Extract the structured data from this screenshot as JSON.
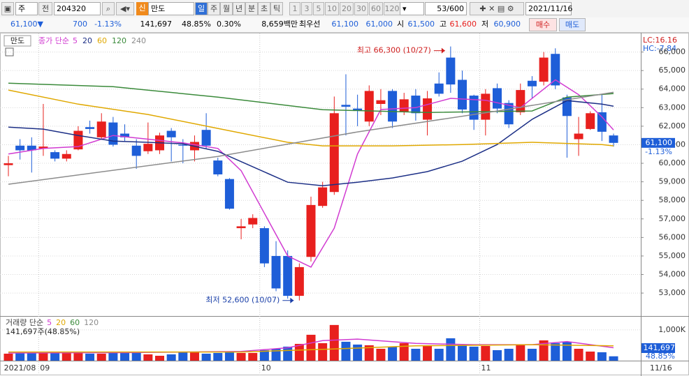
{
  "toolbar": {
    "type_select": "주",
    "mode": "전",
    "code": "204320",
    "tag": "신",
    "name": "만도",
    "periods": [
      "일",
      "주",
      "월",
      "년",
      "분",
      "초",
      "틱"
    ],
    "intervals": [
      "1",
      "3",
      "5",
      "10",
      "20",
      "30",
      "60",
      "120"
    ],
    "count": "53/600",
    "date": "2021/11/16"
  },
  "quote": {
    "price": "61,100▼",
    "change": "700",
    "change_rate": "-1.13%",
    "volume": "141,697",
    "volume_ratio": "48.85%",
    "turnover": "0.30%",
    "amount": "8,659백만",
    "best_label": "최우선",
    "ask": "61,100",
    "bid": "61,000",
    "open_label": "시",
    "open": "61,500",
    "high_label": "고",
    "high": "61,600",
    "low_label": "저",
    "low": "60,900",
    "buy": "매수",
    "sell": "매도"
  },
  "chart_data": {
    "type": "candlestick",
    "name": "만도",
    "legend_prefix": "종가 단순",
    "up_color": "#e8201e",
    "down_color": "#1e5ed8",
    "xlim": [
      -0.72,
      54.34
    ],
    "ylim": [
      51800,
      67000
    ],
    "yticks": [
      {
        "value": 53000,
        "label": "53,000"
      },
      {
        "value": 54000,
        "label": "54,000"
      },
      {
        "value": 55000,
        "label": "55,000"
      },
      {
        "value": 56000,
        "label": "56,000"
      },
      {
        "value": 57000,
        "label": "57,000"
      },
      {
        "value": 58000,
        "label": "58,000"
      },
      {
        "value": 59000,
        "label": "59,000"
      },
      {
        "value": 60000,
        "label": "60,000"
      },
      {
        "value": 61000,
        "label": "61,000"
      },
      {
        "value": 62000,
        "label": "62,000"
      },
      {
        "value": 63000,
        "label": "63,000"
      },
      {
        "value": 64000,
        "label": "64,000"
      },
      {
        "value": 65000,
        "label": "65,000"
      },
      {
        "value": 66000,
        "label": "66,000"
      }
    ],
    "open": [
      59900,
      60950,
      60950,
      60800,
      60600,
      60250,
      60750,
      61950,
      61400,
      62200,
      61600,
      60950,
      60650,
      60700,
      61750,
      61000,
      60700,
      61800,
      60150,
      59150,
      56500,
      56700,
      56500,
      55000,
      55000,
      52850,
      54950,
      57700,
      58450,
      63150,
      62950,
      62250,
      63200,
      63900,
      62750,
      63650,
      62350,
      64300,
      65700,
      64500,
      63650,
      62350,
      64050,
      63250,
      62750,
      64450,
      64400,
      65900,
      63550,
      61300,
      61850,
      62750,
      61500
    ],
    "high": [
      60400,
      61300,
      61400,
      63200,
      60700,
      60700,
      62000,
      62300,
      62700,
      62500,
      62100,
      61300,
      62200,
      61650,
      61900,
      61300,
      61500,
      62700,
      60300,
      59200,
      57000,
      57250,
      56600,
      55800,
      55300,
      54600,
      58200,
      59000,
      63600,
      64800,
      63700,
      64200,
      64000,
      64000,
      63800,
      64000,
      63900,
      64900,
      66300,
      65000,
      63700,
      64000,
      64300,
      63400,
      64300,
      64700,
      66000,
      66200,
      63700,
      62500,
      62800,
      63700,
      61600
    ],
    "low": [
      59300,
      60200,
      59500,
      60400,
      60100,
      60100,
      60700,
      61600,
      61300,
      60900,
      61200,
      59700,
      60500,
      60500,
      60100,
      60000,
      60100,
      60800,
      59300,
      57500,
      55900,
      56500,
      54400,
      53100,
      52700,
      52600,
      54700,
      57600,
      58300,
      61500,
      62000,
      62000,
      62600,
      61900,
      62600,
      62300,
      61500,
      63600,
      63800,
      62700,
      61800,
      61500,
      62700,
      61900,
      62600,
      63500,
      64200,
      64000,
      60300,
      60400,
      61800,
      61200,
      60900
    ],
    "close": [
      60000,
      60700,
      60700,
      60900,
      60250,
      60500,
      61750,
      61850,
      62250,
      61000,
      61400,
      60400,
      61050,
      61500,
      61400,
      60950,
      61150,
      60950,
      59400,
      57550,
      56600,
      57050,
      54600,
      53250,
      52850,
      54400,
      57750,
      58700,
      62700,
      63050,
      62850,
      63900,
      63400,
      62250,
      63450,
      62700,
      63500,
      63750,
      64250,
      62900,
      62350,
      63750,
      62950,
      62100,
      63950,
      64150,
      65700,
      64200,
      62550,
      61600,
      62700,
      61700,
      61100
    ],
    "moving_averages": [
      {
        "name": "5",
        "color": "#d13bd1",
        "x": [
          0,
          3,
          6,
          9,
          12,
          15,
          18,
          20,
          22,
          24,
          26,
          28,
          30,
          32,
          35,
          38,
          41,
          44,
          47,
          49,
          51,
          52
        ],
        "values": [
          60500,
          60800,
          60900,
          61500,
          61300,
          61100,
          60800,
          59600,
          57300,
          55000,
          54400,
          56500,
          60500,
          62900,
          63000,
          63500,
          63400,
          63000,
          64500,
          63700,
          62500,
          61800
        ]
      },
      {
        "name": "20",
        "color": "#1c2f86",
        "x": [
          0,
          3,
          6,
          9,
          12,
          15,
          18,
          21,
          24,
          27,
          30,
          33,
          36,
          39,
          42,
          45,
          48,
          51,
          52
        ],
        "values": [
          61950,
          61840,
          61500,
          61200,
          61130,
          61050,
          60640,
          59810,
          58980,
          58790,
          58980,
          59210,
          59550,
          60110,
          61010,
          62370,
          63380,
          63190,
          63080
        ]
      },
      {
        "name": "60",
        "color": "#e0a800",
        "x": [
          0,
          6,
          12,
          18,
          24,
          27,
          33,
          39,
          45,
          51,
          52
        ],
        "values": [
          63950,
          63190,
          62630,
          61880,
          61130,
          60940,
          60940,
          61010,
          61130,
          61010,
          60940
        ]
      },
      {
        "name": "120",
        "color": "#3a8a3a",
        "x": [
          0,
          9,
          18,
          27,
          36,
          45,
          48,
          52
        ],
        "values": [
          64320,
          64130,
          63570,
          62890,
          62740,
          62820,
          63570,
          63760
        ]
      },
      {
        "name": "240",
        "color": "#8c8c8c",
        "x": [
          0,
          18,
          30,
          42,
          52
        ],
        "values": [
          58870,
          60370,
          61690,
          62820,
          63830
        ]
      }
    ],
    "x_labels": [
      {
        "value": -0.5,
        "label": "2021/08"
      },
      {
        "value": 2.6,
        "label": "09"
      },
      {
        "value": 21.6,
        "label": "10"
      },
      {
        "value": 40.5,
        "label": "11"
      }
    ],
    "x_end_label": "11/16",
    "annotations": [
      {
        "text": "최고 66,300 (10/27)",
        "x": 38,
        "y": 66300,
        "color": "#d02020"
      },
      {
        "text": "최저 52,600 (10/07)",
        "x": 25,
        "y": 52600,
        "color": "#1a3fa8"
      }
    ],
    "last_price": "61,100",
    "last_change": "-1.13%",
    "lc": "LC:16.16",
    "hc": "HC:-7.84",
    "volume": {
      "legend_prefix": "거래량 단순",
      "summary": "141,697주(48.85%)",
      "legend": [
        {
          "name": "5",
          "color": "#d13bd1"
        },
        {
          "name": "20",
          "color": "#e0a800"
        },
        {
          "name": "60",
          "color": "#3a8a3a"
        },
        {
          "name": "120",
          "color": "#8c8c8c"
        }
      ],
      "ylim": [
        0,
        1360000
      ],
      "yticks": [
        {
          "value": 1000000,
          "label": "1,000K"
        }
      ],
      "values": [
        227000,
        250000,
        250000,
        250000,
        250000,
        250000,
        273000,
        227000,
        227000,
        250000,
        273000,
        250000,
        205000,
        159000,
        205000,
        273000,
        273000,
        227000,
        250000,
        295000,
        250000,
        250000,
        341000,
        386000,
        455000,
        545000,
        841000,
        568000,
        1159000,
        614000,
        523000,
        500000,
        386000,
        455000,
        568000,
        386000,
        477000,
        386000,
        727000,
        500000,
        455000,
        477000,
        341000,
        386000,
        500000,
        386000,
        659000,
        568000,
        614000,
        386000,
        295000,
        273000,
        141697
      ],
      "last_label": "141,697",
      "last_ratio": "48.85%",
      "moving_averages": [
        {
          "color": "#d13bd1",
          "x": [
            0,
            10,
            20,
            24,
            27,
            30,
            35,
            40,
            45,
            48,
            52
          ],
          "values": [
            250000,
            260000,
            300000,
            420000,
            650000,
            700000,
            560000,
            520000,
            520000,
            620000,
            420000
          ]
        },
        {
          "color": "#e0a800",
          "x": [
            0,
            20,
            28,
            35,
            45,
            52
          ],
          "values": [
            280000,
            280000,
            380000,
            480000,
            520000,
            480000
          ]
        }
      ]
    }
  }
}
